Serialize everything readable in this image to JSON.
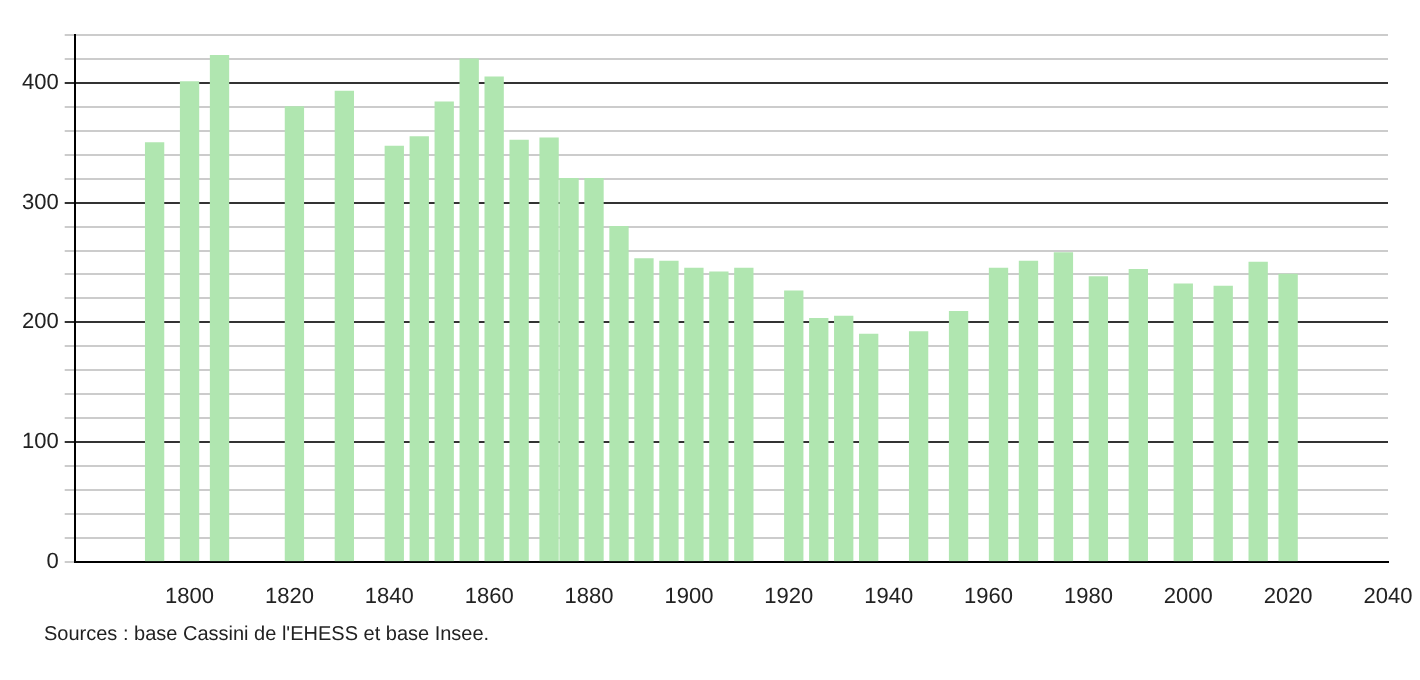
{
  "chart_data": {
    "type": "bar",
    "x": [
      1793,
      1800,
      1806,
      1821,
      1831,
      1841,
      1846,
      1851,
      1856,
      1861,
      1866,
      1872,
      1876,
      1881,
      1886,
      1891,
      1896,
      1901,
      1906,
      1911,
      1921,
      1926,
      1931,
      1936,
      1946,
      1954,
      1962,
      1968,
      1975,
      1982,
      1990,
      1999,
      2007,
      2014,
      2020
    ],
    "values": [
      350,
      401,
      423,
      380,
      393,
      347,
      355,
      384,
      420,
      405,
      352,
      354,
      320,
      320,
      280,
      253,
      251,
      245,
      242,
      245,
      226,
      203,
      205,
      190,
      192,
      209,
      245,
      251,
      258,
      238,
      244,
      232,
      230,
      250,
      240
    ],
    "color": "#b0e6b0",
    "xlim": [
      1777,
      2040
    ],
    "xticks": [
      1800,
      1820,
      1840,
      1860,
      1880,
      1900,
      1920,
      1940,
      1960,
      1980,
      2000,
      2020,
      2040
    ],
    "ylim": [
      0,
      440
    ],
    "yticks": [
      0,
      {
        "value": 20,
        "label": null
      },
      {
        "value": 40,
        "label": null
      },
      {
        "value": 60,
        "label": null
      },
      {
        "value": 80,
        "label": null
      },
      100,
      {
        "value": 120,
        "label": null
      },
      {
        "value": 140,
        "label": null
      },
      {
        "value": 160,
        "label": null
      },
      {
        "value": 180,
        "label": null
      },
      200,
      {
        "value": 220,
        "label": null
      },
      {
        "value": 240,
        "label": null
      },
      {
        "value": 260,
        "label": null
      },
      {
        "value": 280,
        "label": null
      },
      300,
      {
        "value": 320,
        "label": null
      },
      {
        "value": 340,
        "label": null
      },
      {
        "value": 360,
        "label": null
      },
      {
        "value": 380,
        "label": null
      },
      400,
      {
        "value": 420,
        "label": null
      },
      {
        "value": 440,
        "label": null
      }
    ],
    "grid": "y",
    "annotations": [
      "Sources : base Cassini de l'EHESS et base Insee."
    ]
  }
}
